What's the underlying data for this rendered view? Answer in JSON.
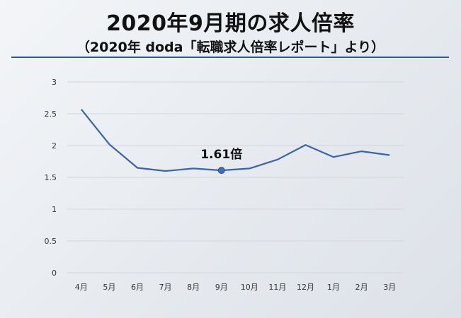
{
  "header": {
    "title": "2020年9月期の求人倍率",
    "subtitle": "（2020年 doda「転職求人倍率レポート」より）"
  },
  "chart_data": {
    "type": "line",
    "categories": [
      "4月",
      "5月",
      "6月",
      "7月",
      "8月",
      "9月",
      "10月",
      "11月",
      "12月",
      "1月",
      "2月",
      "3月"
    ],
    "series": [
      {
        "values": [
          2.57,
          2.02,
          1.65,
          1.6,
          1.64,
          1.61,
          1.64,
          1.78,
          2.01,
          1.82,
          1.91,
          1.85
        ]
      }
    ],
    "ylim": [
      0,
      3
    ],
    "yticks": [
      "0",
      "0.5",
      "1",
      "1.5",
      "2",
      "2.5",
      "3"
    ],
    "grid": true,
    "annotation": {
      "index": 5,
      "text": "1.61倍"
    },
    "colors": {
      "line": "#3b64a8",
      "marker": "#3e70bd",
      "grid": "#d3d7dc"
    }
  }
}
